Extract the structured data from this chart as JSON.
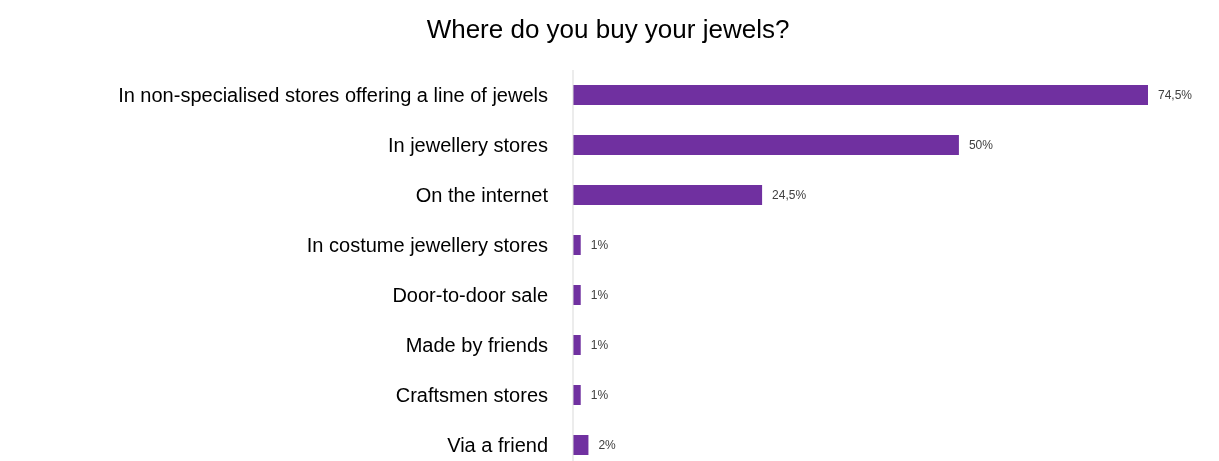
{
  "chart_data": {
    "type": "bar",
    "orientation": "horizontal",
    "title": "Where do you buy your jewels?",
    "categories": [
      "In non-specialised stores offering a line of jewels",
      "In jewellery stores",
      "On the internet",
      "In costume jewellery stores",
      "Door-to-door sale",
      "Made by friends",
      "Craftsmen stores",
      "Via a friend"
    ],
    "values": [
      74.5,
      50,
      24.5,
      1,
      1,
      1,
      1,
      2
    ],
    "value_labels": [
      "74,5%",
      "50%",
      "24,5%",
      "1%",
      "1%",
      "1%",
      "1%",
      "2%"
    ],
    "color": "#7030a0"
  }
}
